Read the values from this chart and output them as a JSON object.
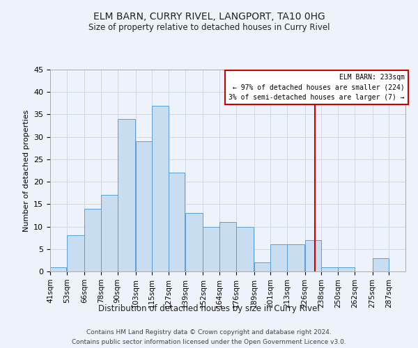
{
  "title1": "ELM BARN, CURRY RIVEL, LANGPORT, TA10 0HG",
  "title2": "Size of property relative to detached houses in Curry Rivel",
  "xlabel": "Distribution of detached houses by size in Curry Rivel",
  "ylabel": "Number of detached properties",
  "footer1": "Contains HM Land Registry data © Crown copyright and database right 2024.",
  "footer2": "Contains public sector information licensed under the Open Government Licence v3.0.",
  "bin_labels": [
    "41sqm",
    "53sqm",
    "66sqm",
    "78sqm",
    "90sqm",
    "103sqm",
    "115sqm",
    "127sqm",
    "139sqm",
    "152sqm",
    "164sqm",
    "176sqm",
    "189sqm",
    "201sqm",
    "213sqm",
    "226sqm",
    "238sqm",
    "250sqm",
    "262sqm",
    "275sqm",
    "287sqm"
  ],
  "bar_values": [
    1,
    8,
    14,
    17,
    34,
    29,
    37,
    22,
    13,
    10,
    11,
    10,
    2,
    6,
    6,
    7,
    1,
    1,
    0,
    3,
    0
  ],
  "bar_color": "#c9ddf0",
  "bar_edge_color": "#5a9fd4",
  "ylim": [
    0,
    45
  ],
  "yticks": [
    0,
    5,
    10,
    15,
    20,
    25,
    30,
    35,
    40,
    45
  ],
  "property_size": 233,
  "annotation_title": "ELM BARN: 233sqm",
  "annotation_line1": "← 97% of detached houses are smaller (224)",
  "annotation_line2": "3% of semi-detached houses are larger (7) →",
  "vline_color": "#cc0000",
  "annotation_box_color": "#cc0000",
  "grid_color": "#d0d8e8",
  "bg_color": "#eef2fa"
}
